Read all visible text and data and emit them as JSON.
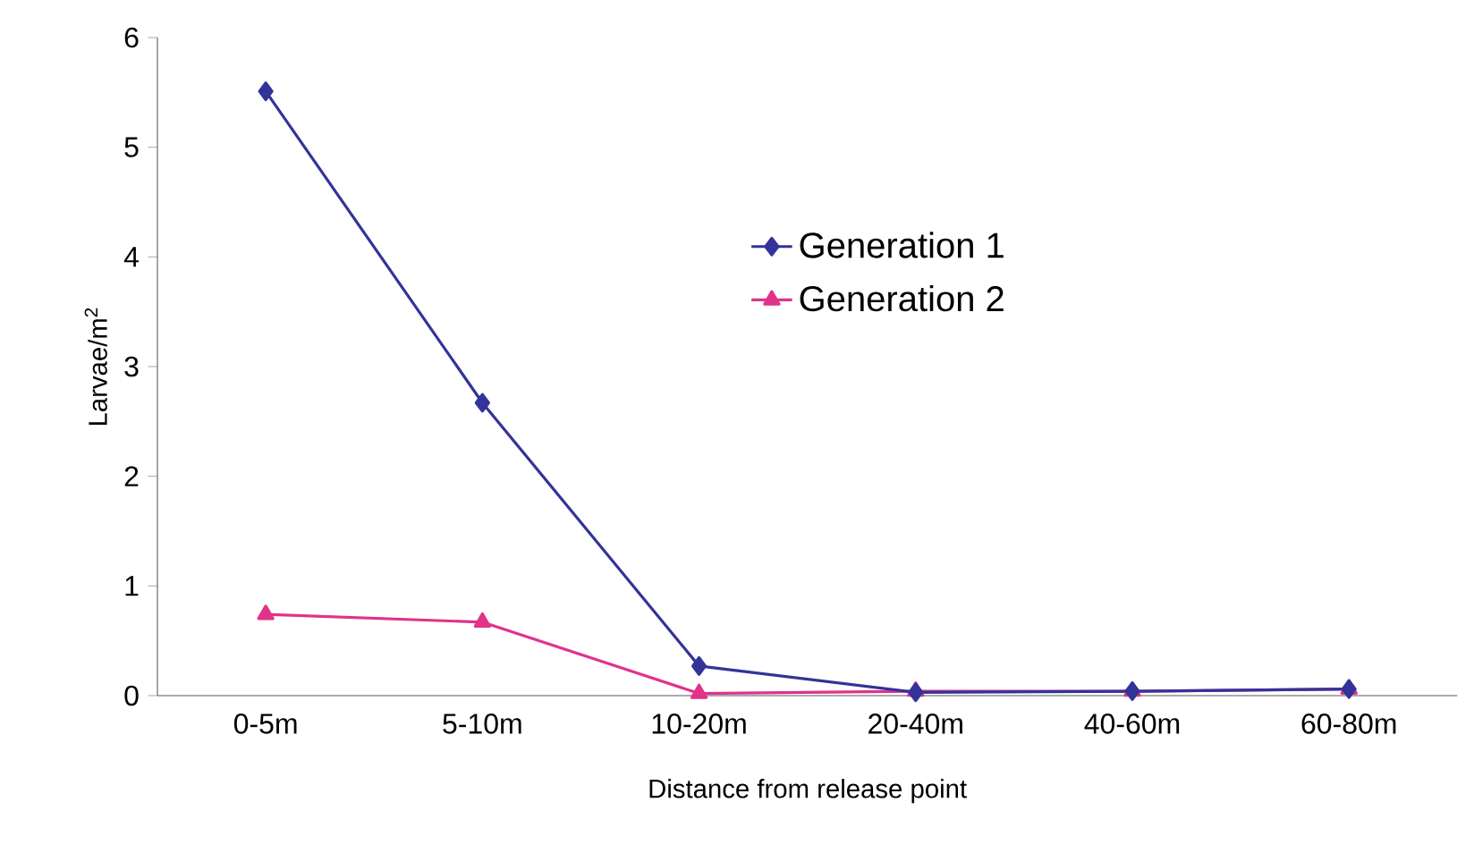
{
  "chart_data": {
    "type": "line",
    "xlabel": "Distance from release point",
    "ylabel": "Larvae/m$^{2}$",
    "categories": [
      "0-5m",
      "5-10m",
      "10-20m",
      "20-40m",
      "40-60m",
      "60-80m"
    ],
    "series": [
      {
        "name": "Generation 1",
        "color": "#333399",
        "marker": "diamond",
        "values": [
          5.51,
          2.67,
          0.27,
          0.03,
          0.04,
          0.06
        ]
      },
      {
        "name": "Generation 2",
        "color": "#e0338a",
        "marker": "triangle",
        "values": [
          0.74,
          0.67,
          0.02,
          0.04,
          0.04,
          0.06
        ]
      }
    ],
    "ylim": [
      0,
      6
    ],
    "yticks": [
      0,
      1,
      2,
      3,
      4,
      5,
      6
    ],
    "grid": false,
    "legend": "center",
    "line_style": "solid"
  }
}
